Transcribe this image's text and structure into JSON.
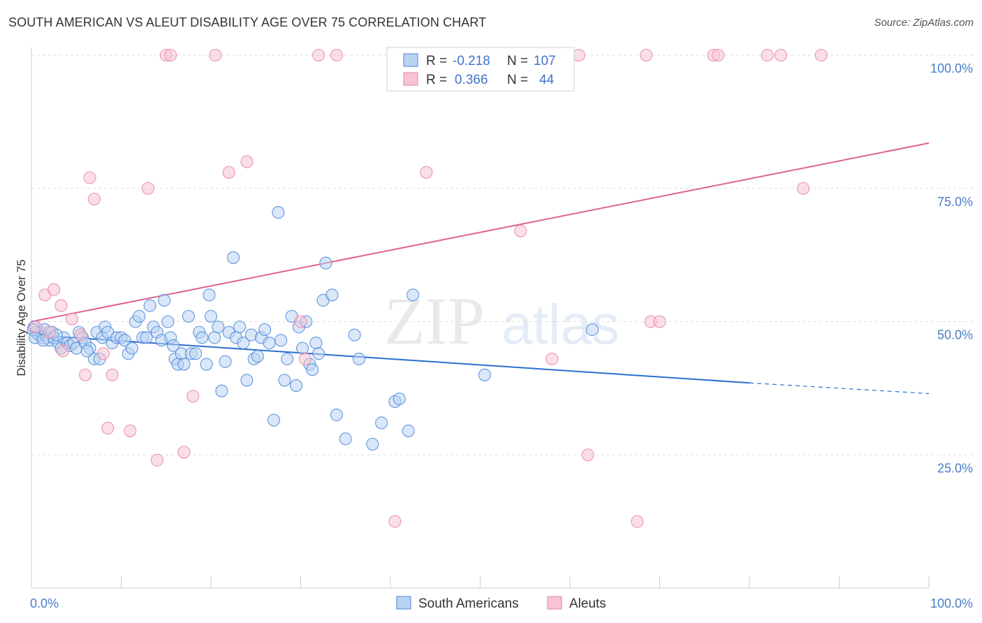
{
  "title": "SOUTH AMERICAN VS ALEUT DISABILITY AGE OVER 75 CORRELATION CHART",
  "source": "Source: ZipAtlas.com",
  "colors": {
    "blue": "#4a86d8",
    "blue_fill": "#b9d3f3",
    "blue_line": "#2a6fd0",
    "pink": "#e784a4",
    "pink_fill": "#f6c4d3",
    "pink_line": "#e0628e",
    "axis_text": "#4a7cc7"
  },
  "legend_top": {
    "rows": [
      {
        "r_label": "R =",
        "r_value": "-0.218",
        "n_label": "N =",
        "n_value": "107"
      },
      {
        "r_label": "R =",
        "r_value": "0.366",
        "n_label": "N =",
        "n_value": "44"
      }
    ]
  },
  "legend_bottom": [
    "South Americans",
    "Aleuts"
  ],
  "watermark": {
    "zip": "ZIP",
    "atlas": "atlas"
  },
  "chart_data": {
    "type": "scatter",
    "xlabel": "",
    "ylabel": "Disability Age Over 75",
    "xlim": [
      0,
      100
    ],
    "ylim": [
      0,
      100
    ],
    "x_tick_labels": [
      "0.0%",
      "100.0%"
    ],
    "y_tick_labels": [
      "25.0%",
      "50.0%",
      "75.0%",
      "100.0%"
    ],
    "y_ticks": [
      25,
      50,
      75,
      100
    ],
    "grid": "dashed horizontal",
    "legend_placement": "top-center",
    "series": [
      {
        "name": "South Americans",
        "points": [
          [
            0.3,
            49
          ],
          [
            0.5,
            48
          ],
          [
            0.8,
            47.5
          ],
          [
            1,
            48
          ],
          [
            1.2,
            47
          ],
          [
            1.5,
            48.5
          ],
          [
            1.8,
            47
          ],
          [
            2,
            46.5
          ],
          [
            2.3,
            48
          ],
          [
            2.5,
            47
          ],
          [
            3,
            46
          ],
          [
            3.3,
            45
          ],
          [
            3.6,
            47
          ],
          [
            4,
            46
          ],
          [
            4.3,
            45.5
          ],
          [
            4.7,
            46
          ],
          [
            5,
            45
          ],
          [
            5.3,
            48
          ],
          [
            5.7,
            47
          ],
          [
            6,
            46
          ],
          [
            6.5,
            45
          ],
          [
            7,
            43
          ],
          [
            7.3,
            48
          ],
          [
            7.6,
            43
          ],
          [
            7.9,
            47
          ],
          [
            8.2,
            49
          ],
          [
            8.5,
            48
          ],
          [
            9,
            46
          ],
          [
            9.5,
            47
          ],
          [
            10,
            47
          ],
          [
            10.4,
            46.5
          ],
          [
            10.8,
            44
          ],
          [
            11.2,
            45
          ],
          [
            11.6,
            50
          ],
          [
            12,
            51
          ],
          [
            12.4,
            47
          ],
          [
            12.8,
            47
          ],
          [
            13.2,
            53
          ],
          [
            13.6,
            49
          ],
          [
            14,
            48
          ],
          [
            14.5,
            46.5
          ],
          [
            14.8,
            54
          ],
          [
            15.2,
            50
          ],
          [
            15.5,
            47
          ],
          [
            15.8,
            45.5
          ],
          [
            16,
            43
          ],
          [
            16.3,
            42
          ],
          [
            16.7,
            44
          ],
          [
            17,
            42
          ],
          [
            17.5,
            51
          ],
          [
            17.8,
            44
          ],
          [
            18.3,
            44
          ],
          [
            18.7,
            48
          ],
          [
            19,
            47
          ],
          [
            19.5,
            42
          ],
          [
            19.8,
            55
          ],
          [
            20,
            51
          ],
          [
            20.4,
            47
          ],
          [
            20.8,
            49
          ],
          [
            21.2,
            37
          ],
          [
            21.6,
            42.5
          ],
          [
            22,
            48
          ],
          [
            22.5,
            62
          ],
          [
            22.8,
            47
          ],
          [
            23.2,
            49
          ],
          [
            23.6,
            46
          ],
          [
            24,
            39
          ],
          [
            24.5,
            47.5
          ],
          [
            24.8,
            43
          ],
          [
            25.2,
            43.5
          ],
          [
            25.6,
            47
          ],
          [
            26,
            48.5
          ],
          [
            26.5,
            46
          ],
          [
            27,
            31.5
          ],
          [
            27.5,
            70.5
          ],
          [
            27.8,
            46.5
          ],
          [
            28.2,
            39
          ],
          [
            28.5,
            43
          ],
          [
            29,
            51
          ],
          [
            29.5,
            38
          ],
          [
            29.8,
            49
          ],
          [
            30.2,
            45
          ],
          [
            30.6,
            50
          ],
          [
            31,
            42
          ],
          [
            31.3,
            41
          ],
          [
            31.7,
            46
          ],
          [
            32,
            44
          ],
          [
            32.5,
            54
          ],
          [
            32.8,
            61
          ],
          [
            33.5,
            55
          ],
          [
            34,
            32.5
          ],
          [
            35,
            28
          ],
          [
            36,
            47.5
          ],
          [
            36.5,
            43
          ],
          [
            38,
            27
          ],
          [
            39,
            31
          ],
          [
            40.5,
            35
          ],
          [
            41,
            35.5
          ],
          [
            42,
            29.5
          ],
          [
            42.5,
            55
          ],
          [
            50.5,
            40
          ],
          [
            62.5,
            48.5
          ],
          [
            0.2,
            48.5
          ],
          [
            0.4,
            47
          ],
          [
            1.3,
            46.5
          ],
          [
            2.8,
            47.5
          ],
          [
            6.2,
            44.5
          ]
        ],
        "trend": {
          "x0": 0,
          "y0": 47.5,
          "x1": 80,
          "y1": 38.5,
          "dash_to_x": 100,
          "dash_to_y": 36.5
        }
      },
      {
        "name": "Aleuts",
        "points": [
          [
            0.5,
            49
          ],
          [
            1.5,
            55
          ],
          [
            2,
            48
          ],
          [
            2.5,
            56
          ],
          [
            3.3,
            53
          ],
          [
            3.5,
            44.5
          ],
          [
            4.5,
            50.5
          ],
          [
            5.5,
            47.5
          ],
          [
            6,
            40
          ],
          [
            6.5,
            77
          ],
          [
            7,
            73
          ],
          [
            8,
            44
          ],
          [
            8.5,
            30
          ],
          [
            9,
            40
          ],
          [
            11,
            29.5
          ],
          [
            13,
            75
          ],
          [
            14,
            24
          ],
          [
            15,
            100
          ],
          [
            15.5,
            100
          ],
          [
            17,
            25.5
          ],
          [
            18,
            36
          ],
          [
            20.5,
            100
          ],
          [
            22,
            78
          ],
          [
            24,
            80
          ],
          [
            30,
            50
          ],
          [
            30.5,
            43
          ],
          [
            32,
            100
          ],
          [
            34,
            100
          ],
          [
            40.5,
            12.5
          ],
          [
            44,
            78
          ],
          [
            54.5,
            67
          ],
          [
            58,
            43
          ],
          [
            61,
            100
          ],
          [
            62,
            25
          ],
          [
            67.5,
            12.5
          ],
          [
            68.5,
            100
          ],
          [
            69,
            50
          ],
          [
            70,
            50
          ],
          [
            76,
            100
          ],
          [
            76.5,
            100
          ],
          [
            82,
            100
          ],
          [
            83.5,
            100
          ],
          [
            86,
            75
          ],
          [
            88,
            100
          ]
        ],
        "trend": {
          "x0": 0,
          "y0": 50,
          "x1": 100,
          "y1": 83.5
        }
      }
    ]
  }
}
